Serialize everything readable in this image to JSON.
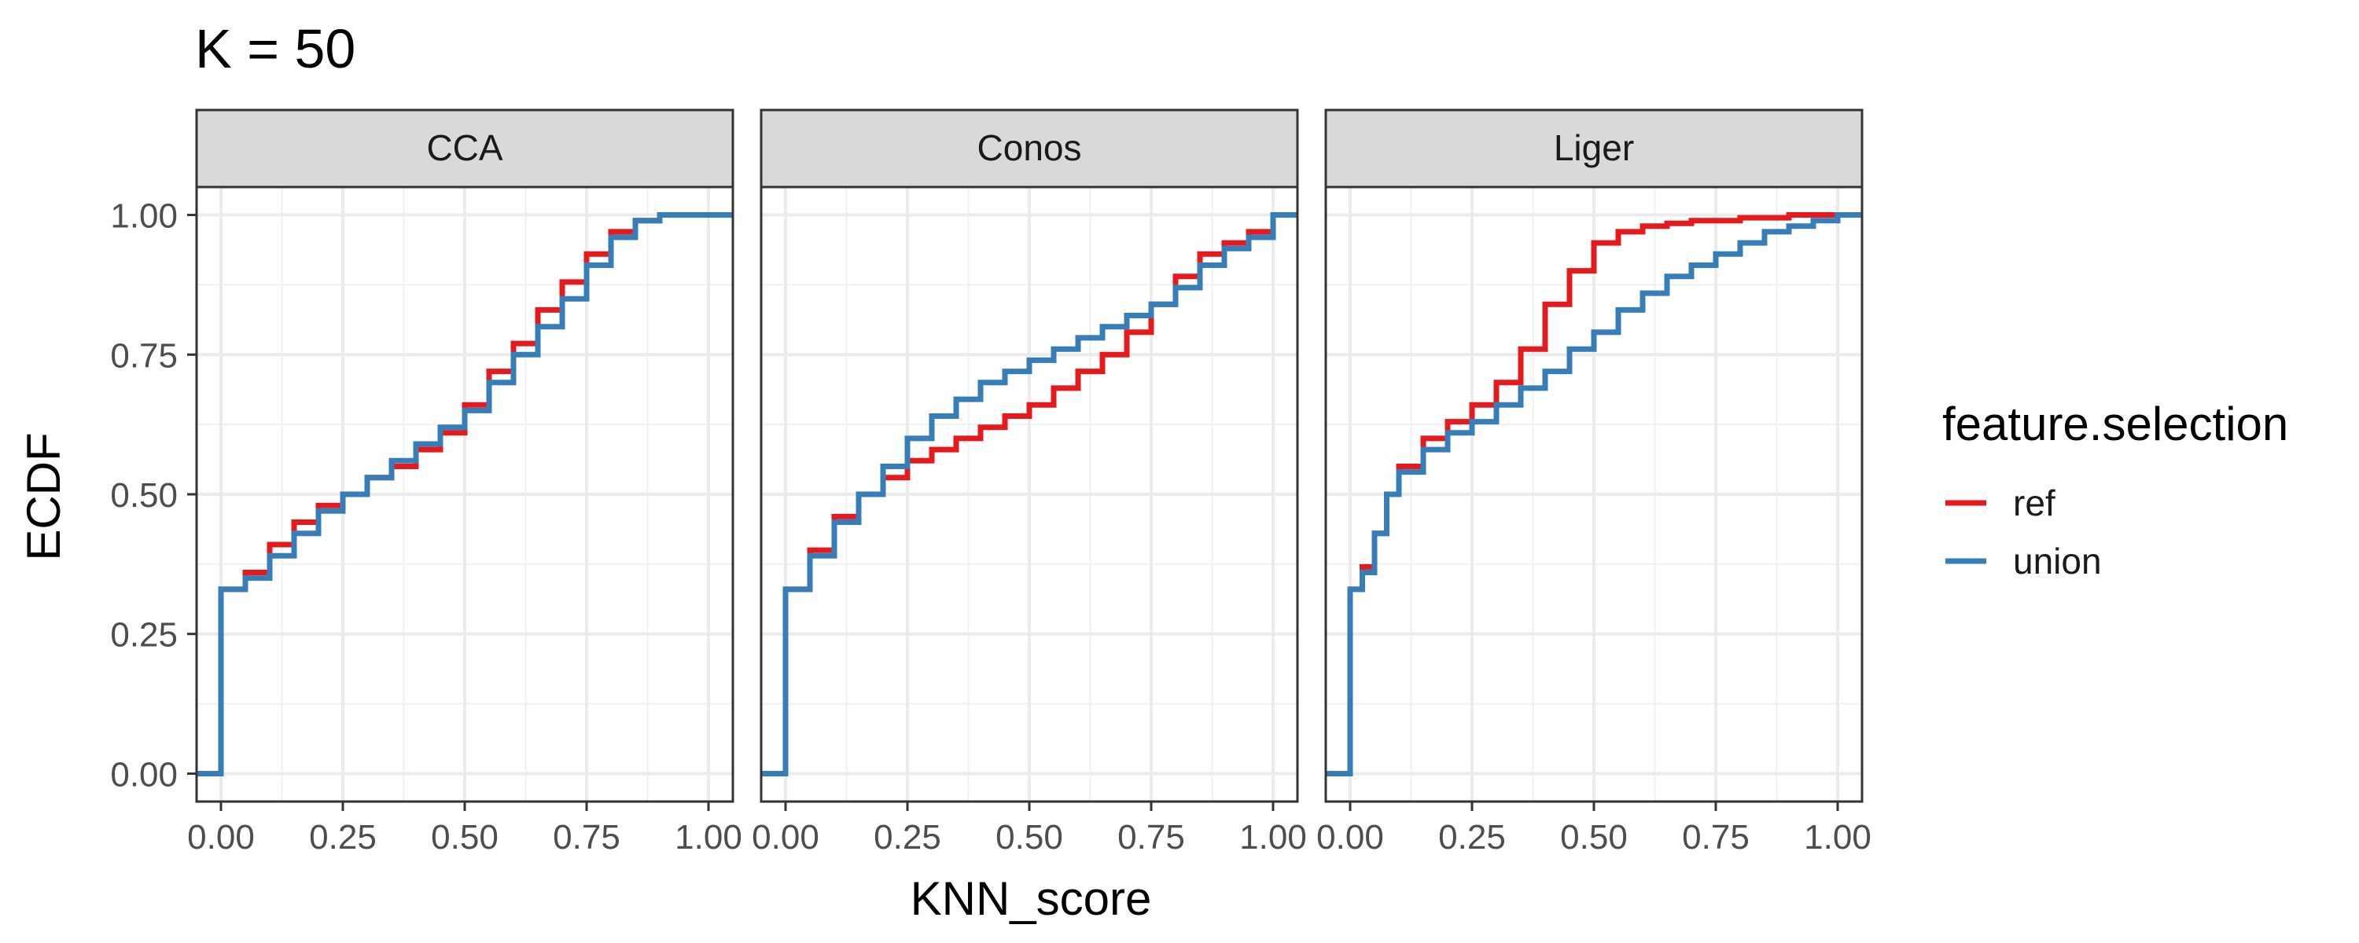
{
  "chart_data": {
    "type": "line",
    "title": "K = 50",
    "xlabel": "KNN_score",
    "ylabel": "ECDF",
    "xlim": [
      -0.05,
      1.05
    ],
    "ylim": [
      -0.05,
      1.05
    ],
    "x_ticks": [
      0,
      0.25,
      0.5,
      0.75,
      1
    ],
    "x_tick_labels": [
      "0.00",
      "0.25",
      "0.50",
      "0.75",
      "1.00"
    ],
    "y_ticks": [
      0,
      0.25,
      0.5,
      0.75,
      1
    ],
    "y_tick_labels": [
      "0.00",
      "0.25",
      "0.50",
      "0.75",
      "1.00"
    ],
    "grid": true,
    "step": true,
    "legend": {
      "title": "feature.selection",
      "position": "right",
      "entries": [
        {
          "name": "ref",
          "color": "#e41a1c"
        },
        {
          "name": "union",
          "color": "#377eb8"
        }
      ]
    },
    "panels": [
      {
        "name": "CCA",
        "series": [
          {
            "name": "ref",
            "color": "#e41a1c",
            "x": [
              -0.05,
              0,
              0,
              0.05,
              0.1,
              0.15,
              0.2,
              0.25,
              0.3,
              0.35,
              0.4,
              0.45,
              0.5,
              0.55,
              0.6,
              0.65,
              0.7,
              0.75,
              0.8,
              0.85,
              0.9,
              0.95,
              1.0,
              1.05
            ],
            "y": [
              0,
              0,
              0.33,
              0.36,
              0.41,
              0.45,
              0.48,
              0.5,
              0.53,
              0.55,
              0.58,
              0.61,
              0.66,
              0.72,
              0.77,
              0.83,
              0.88,
              0.93,
              0.97,
              0.99,
              1.0,
              1.0,
              1.0,
              1.0
            ]
          },
          {
            "name": "union",
            "color": "#377eb8",
            "x": [
              -0.05,
              0,
              0,
              0.05,
              0.1,
              0.15,
              0.2,
              0.25,
              0.3,
              0.35,
              0.4,
              0.45,
              0.5,
              0.55,
              0.6,
              0.65,
              0.7,
              0.75,
              0.8,
              0.85,
              0.9,
              0.95,
              1.0,
              1.05
            ],
            "y": [
              0,
              0,
              0.33,
              0.35,
              0.39,
              0.43,
              0.47,
              0.5,
              0.53,
              0.56,
              0.59,
              0.62,
              0.65,
              0.7,
              0.75,
              0.8,
              0.85,
              0.91,
              0.96,
              0.99,
              1.0,
              1.0,
              1.0,
              1.0
            ]
          }
        ]
      },
      {
        "name": "Conos",
        "series": [
          {
            "name": "ref",
            "color": "#e41a1c",
            "x": [
              -0.05,
              0,
              0,
              0.05,
              0.1,
              0.15,
              0.2,
              0.25,
              0.3,
              0.35,
              0.4,
              0.45,
              0.5,
              0.55,
              0.6,
              0.65,
              0.7,
              0.75,
              0.8,
              0.85,
              0.9,
              0.95,
              1.0,
              1.05
            ],
            "y": [
              0,
              0,
              0.33,
              0.4,
              0.46,
              0.5,
              0.53,
              0.56,
              0.58,
              0.6,
              0.62,
              0.64,
              0.66,
              0.69,
              0.72,
              0.75,
              0.79,
              0.84,
              0.89,
              0.93,
              0.95,
              0.97,
              1.0,
              1.0
            ]
          },
          {
            "name": "union",
            "color": "#377eb8",
            "x": [
              -0.05,
              0,
              0,
              0.05,
              0.1,
              0.15,
              0.2,
              0.25,
              0.3,
              0.35,
              0.4,
              0.45,
              0.5,
              0.55,
              0.6,
              0.65,
              0.7,
              0.75,
              0.8,
              0.85,
              0.9,
              0.95,
              1.0,
              1.05
            ],
            "y": [
              0,
              0,
              0.33,
              0.39,
              0.45,
              0.5,
              0.55,
              0.6,
              0.64,
              0.67,
              0.7,
              0.72,
              0.74,
              0.76,
              0.78,
              0.8,
              0.82,
              0.84,
              0.87,
              0.91,
              0.94,
              0.96,
              1.0,
              1.0
            ]
          }
        ]
      },
      {
        "name": "Liger",
        "series": [
          {
            "name": "ref",
            "color": "#e41a1c",
            "x": [
              -0.05,
              0,
              0,
              0.025,
              0.05,
              0.075,
              0.1,
              0.15,
              0.2,
              0.25,
              0.3,
              0.35,
              0.4,
              0.45,
              0.5,
              0.55,
              0.6,
              0.65,
              0.7,
              0.75,
              0.8,
              0.9,
              1.0,
              1.05
            ],
            "y": [
              0,
              0,
              0.33,
              0.37,
              0.43,
              0.5,
              0.55,
              0.6,
              0.63,
              0.66,
              0.7,
              0.76,
              0.84,
              0.9,
              0.95,
              0.97,
              0.98,
              0.985,
              0.99,
              0.99,
              0.995,
              1.0,
              1.0,
              1.0
            ]
          },
          {
            "name": "union",
            "color": "#377eb8",
            "x": [
              -0.05,
              0,
              0,
              0.025,
              0.05,
              0.075,
              0.1,
              0.15,
              0.2,
              0.25,
              0.3,
              0.35,
              0.4,
              0.45,
              0.5,
              0.55,
              0.6,
              0.65,
              0.7,
              0.75,
              0.8,
              0.85,
              0.9,
              0.95,
              1.0,
              1.05
            ],
            "y": [
              0,
              0,
              0.33,
              0.36,
              0.43,
              0.5,
              0.54,
              0.58,
              0.61,
              0.63,
              0.66,
              0.69,
              0.72,
              0.76,
              0.79,
              0.83,
              0.86,
              0.89,
              0.91,
              0.93,
              0.95,
              0.97,
              0.98,
              0.99,
              1.0,
              1.0
            ]
          }
        ]
      }
    ]
  }
}
